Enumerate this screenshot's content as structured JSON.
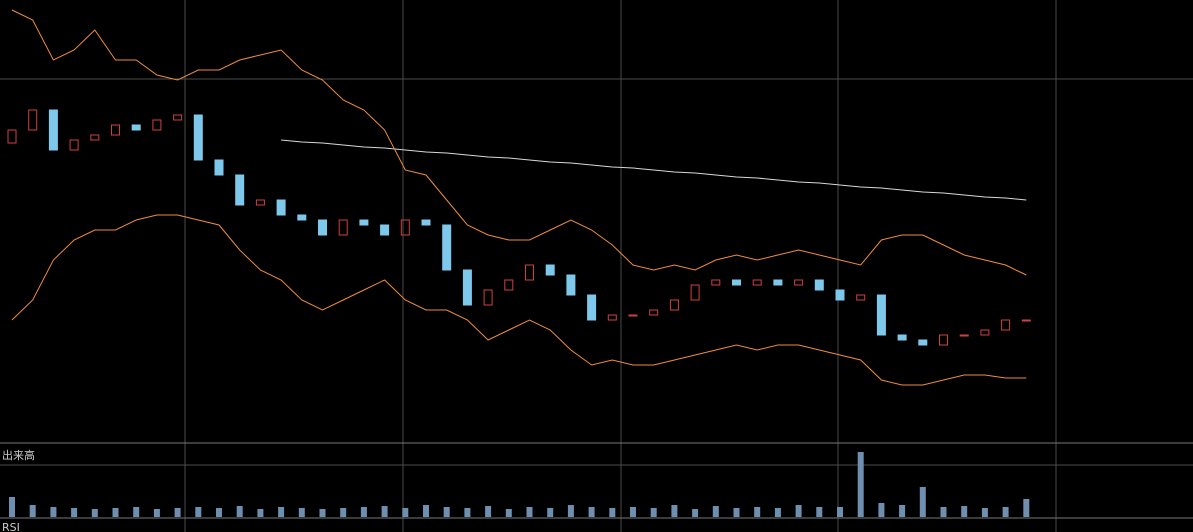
{
  "chart_data": [
    {
      "type": "candlestick",
      "up_color": "#d04040",
      "down_color": "#7ec8ec",
      "ylim": [
        0,
        443
      ],
      "open": [
        300,
        313,
        333,
        293,
        303,
        308,
        318,
        313,
        323,
        328,
        283,
        268,
        238,
        243,
        228,
        223,
        208,
        223,
        218,
        208,
        223,
        218,
        173,
        138,
        153,
        163,
        178,
        168,
        148,
        123,
        128,
        128,
        133,
        143,
        158,
        163,
        158,
        163,
        158,
        163,
        153,
        143,
        148,
        108,
        103,
        98,
        108,
        108,
        113,
        123
      ],
      "close": [
        313,
        333,
        293,
        303,
        308,
        318,
        313,
        323,
        328,
        283,
        268,
        238,
        243,
        228,
        223,
        208,
        223,
        218,
        208,
        223,
        218,
        173,
        138,
        153,
        163,
        178,
        168,
        148,
        123,
        128,
        128,
        133,
        143,
        158,
        163,
        158,
        163,
        158,
        163,
        153,
        143,
        148,
        108,
        103,
        98,
        108,
        108,
        113,
        123,
        123
      ],
      "series": [
        {
          "color": "#d8d8d8",
          "values": [
            null,
            null,
            null,
            null,
            null,
            null,
            null,
            null,
            null,
            null,
            null,
            null,
            null,
            303,
            301,
            300,
            298,
            296,
            295,
            293,
            291,
            290,
            288,
            286,
            285,
            283,
            281,
            280,
            278,
            276,
            275,
            273,
            271,
            270,
            268,
            266,
            265,
            263,
            261,
            260,
            258,
            256,
            255,
            253,
            251,
            250,
            248,
            246,
            245,
            243
          ]
        },
        {
          "color": "#f08c3c",
          "values": [
            433,
            423,
            383,
            393,
            413,
            383,
            383,
            368,
            363,
            373,
            373,
            383,
            388,
            393,
            373,
            363,
            343,
            333,
            313,
            273,
            268,
            243,
            218,
            208,
            203,
            203,
            213,
            223,
            213,
            198,
            178,
            173,
            178,
            173,
            183,
            188,
            183,
            188,
            193,
            188,
            183,
            178,
            203,
            208,
            208,
            198,
            188,
            183,
            178,
            168
          ]
        },
        {
          "color": "#f08c3c",
          "values": [
            123,
            143,
            183,
            203,
            213,
            213,
            223,
            228,
            228,
            223,
            218,
            193,
            173,
            163,
            143,
            133,
            143,
            153,
            163,
            143,
            133,
            133,
            123,
            103,
            113,
            123,
            113,
            93,
            78,
            83,
            78,
            78,
            83,
            88,
            93,
            98,
            93,
            98,
            98,
            93,
            88,
            83,
            63,
            58,
            58,
            63,
            68,
            68,
            65,
            65
          ]
        }
      ]
    },
    {
      "type": "bar",
      "title": "出来高",
      "color": "#6f8fb0",
      "ylim": [
        0,
        70
      ],
      "values": [
        20,
        12,
        10,
        9,
        8,
        9,
        10,
        8,
        9,
        10,
        9,
        11,
        8,
        10,
        9,
        8,
        9,
        10,
        11,
        9,
        12,
        10,
        9,
        11,
        8,
        10,
        9,
        12,
        10,
        9,
        10,
        9,
        12,
        8,
        11,
        9,
        10,
        9,
        12,
        10,
        10,
        65,
        14,
        12,
        30,
        10,
        11,
        9,
        10,
        18
      ]
    }
  ],
  "rsi_panel": {
    "title": "RSI"
  }
}
